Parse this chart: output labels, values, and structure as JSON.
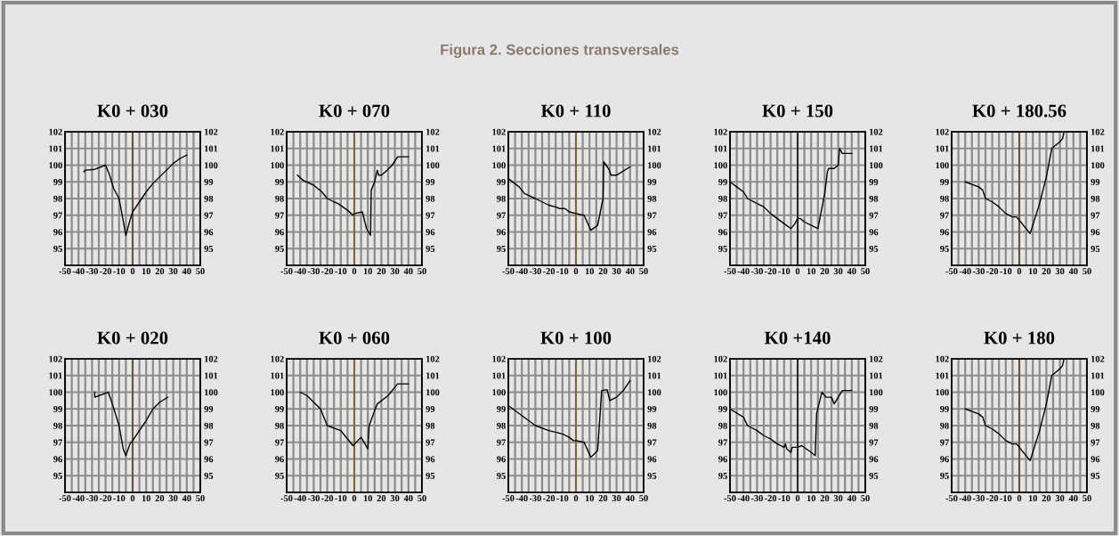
{
  "chart_data": [
    {
      "type": "line",
      "title": "K0 + 030",
      "annotations": [
        "Figura 2. Secciones transversales"
      ],
      "xlim": [
        -50,
        50
      ],
      "xticks": [
        -50,
        {
          "value": -45,
          "label": null
        },
        -40,
        {
          "value": -35,
          "label": null
        },
        -30,
        {
          "value": -25,
          "label": null
        },
        -20,
        {
          "value": -15,
          "label": null
        },
        -10,
        {
          "value": -5,
          "label": null
        },
        0,
        {
          "value": 5,
          "label": null
        },
        10,
        {
          "value": 15,
          "label": null
        },
        20,
        {
          "value": 25,
          "label": null
        },
        30,
        {
          "value": 35,
          "label": null
        },
        40,
        {
          "value": 45,
          "label": null
        },
        50
      ],
      "ylim": [
        94,
        102
      ],
      "yticks": [
        95,
        96,
        97,
        98,
        99,
        100,
        101,
        102
      ],
      "y2lim": [
        94,
        102
      ],
      "y2ticks": [
        95,
        96,
        97,
        98,
        99,
        100,
        101,
        102
      ],
      "grid": true,
      "ref_lines": [
        {
          "axis": "x",
          "value": 0,
          "color": "#5a3a10"
        }
      ],
      "series": [
        {
          "color": "#000000",
          "x": [
            -36,
            -35,
            -28,
            -20,
            -17,
            -14,
            -10,
            -5,
            -2,
            0,
            5,
            10,
            15,
            20,
            25,
            30,
            35,
            40
          ],
          "values": [
            99.6,
            99.7,
            99.75,
            100,
            99.4,
            98.6,
            98,
            95.8,
            96.7,
            97.2,
            97.8,
            98.4,
            98.9,
            99.3,
            99.7,
            100.1,
            100.4,
            100.6
          ]
        }
      ]
    },
    {
      "type": "line",
      "title": "K0 + 070",
      "xlim": [
        -50,
        50
      ],
      "xticks": [
        -50,
        {
          "value": -45,
          "label": null
        },
        -40,
        {
          "value": -35,
          "label": null
        },
        -30,
        {
          "value": -25,
          "label": null
        },
        -20,
        {
          "value": -15,
          "label": null
        },
        -10,
        {
          "value": -5,
          "label": null
        },
        0,
        {
          "value": 5,
          "label": null
        },
        10,
        {
          "value": 15,
          "label": null
        },
        20,
        {
          "value": 25,
          "label": null
        },
        30,
        {
          "value": 35,
          "label": null
        },
        40,
        {
          "value": 45,
          "label": null
        },
        50
      ],
      "ylim": [
        94,
        102
      ],
      "yticks": [
        95,
        96,
        97,
        98,
        99,
        100,
        101,
        102
      ],
      "y2lim": [
        94,
        102
      ],
      "y2ticks": [
        95,
        96,
        97,
        98,
        99,
        100,
        101,
        102
      ],
      "grid": true,
      "ref_lines": [
        {
          "axis": "x",
          "value": 0,
          "color": "#7a5a10"
        }
      ],
      "series": [
        {
          "color": "#000000",
          "x": [
            -42,
            -38,
            -30,
            -24,
            -20,
            -15,
            -12,
            -5,
            -1,
            0,
            6,
            9,
            12,
            12.5,
            15,
            17,
            18,
            20,
            23,
            28,
            32,
            40
          ],
          "values": [
            99.4,
            99.1,
            98.8,
            98.4,
            98,
            97.8,
            97.7,
            97.3,
            97,
            97.1,
            97.2,
            96.2,
            95.8,
            98.5,
            99,
            99.7,
            99.4,
            99.4,
            99.6,
            100,
            100.5,
            100.5
          ]
        }
      ]
    },
    {
      "type": "line",
      "title": "K0 + 110",
      "xlim": [
        -50,
        50
      ],
      "xticks": [
        -50,
        {
          "value": -45,
          "label": null
        },
        -40,
        {
          "value": -35,
          "label": null
        },
        -30,
        {
          "value": -25,
          "label": null
        },
        -20,
        {
          "value": -15,
          "label": null
        },
        -10,
        {
          "value": -5,
          "label": null
        },
        0,
        {
          "value": 5,
          "label": null
        },
        10,
        {
          "value": 15,
          "label": null
        },
        20,
        {
          "value": 25,
          "label": null
        },
        30,
        {
          "value": 35,
          "label": null
        },
        40,
        {
          "value": 45,
          "label": null
        },
        50
      ],
      "ylim": [
        94,
        102
      ],
      "yticks": [
        95,
        96,
        97,
        98,
        99,
        100,
        101,
        102
      ],
      "y2lim": [
        94,
        102
      ],
      "y2ticks": [
        95,
        96,
        97,
        98,
        99,
        100,
        101,
        102
      ],
      "grid": true,
      "ref_lines": [
        {
          "axis": "x",
          "value": 0,
          "color": "#7a5a10"
        }
      ],
      "series": [
        {
          "color": "#000000",
          "x": [
            -50,
            -42,
            -40,
            -38,
            -30,
            -20,
            -15,
            -12,
            -8,
            -5,
            0,
            6,
            11,
            16,
            20,
            20.5,
            24,
            26,
            30,
            32,
            40
          ],
          "values": [
            99.2,
            98.7,
            98.5,
            98.3,
            98,
            97.6,
            97.5,
            97.4,
            97.4,
            97.2,
            97.1,
            97,
            96.1,
            96.4,
            98,
            100.2,
            99.8,
            99.4,
            99.4,
            99.5,
            99.9
          ]
        }
      ]
    },
    {
      "type": "line",
      "title": "K0 + 150",
      "xlim": [
        -50,
        50
      ],
      "xticks": [
        -50,
        {
          "value": -45,
          "label": null
        },
        -40,
        {
          "value": -35,
          "label": null
        },
        -30,
        {
          "value": -25,
          "label": null
        },
        -20,
        {
          "value": -15,
          "label": null
        },
        -10,
        {
          "value": -5,
          "label": null
        },
        0,
        {
          "value": 5,
          "label": null
        },
        10,
        {
          "value": 15,
          "label": null
        },
        20,
        {
          "value": 25,
          "label": null
        },
        30,
        {
          "value": 35,
          "label": null
        },
        40,
        {
          "value": 45,
          "label": null
        },
        50
      ],
      "ylim": [
        94,
        102
      ],
      "yticks": [
        95,
        96,
        97,
        98,
        99,
        100,
        101,
        102
      ],
      "y2lim": [
        94,
        102
      ],
      "y2ticks": [
        95,
        96,
        97,
        98,
        99,
        100,
        101,
        102
      ],
      "grid": true,
      "ref_lines": [
        {
          "axis": "x",
          "value": 0,
          "color": "#000000"
        }
      ],
      "series": [
        {
          "color": "#000000",
          "x": [
            -50,
            -45,
            -40,
            -37,
            -30,
            -25,
            -20,
            -10,
            -5,
            -2,
            0,
            2,
            5,
            15,
            20,
            22,
            23,
            27,
            30,
            31,
            33,
            40
          ],
          "values": [
            99,
            98.7,
            98.4,
            98,
            97.7,
            97.5,
            97.1,
            96.5,
            96.2,
            96.5,
            96.8,
            96.8,
            96.6,
            96.2,
            98.3,
            99.6,
            99.8,
            99.8,
            100,
            101,
            100.7,
            100.7
          ]
        }
      ]
    },
    {
      "type": "line",
      "title": "K0 + 180.56",
      "xlim": [
        -50,
        50
      ],
      "xticks": [
        -50,
        {
          "value": -45,
          "label": null
        },
        -40,
        {
          "value": -35,
          "label": null
        },
        -30,
        {
          "value": -25,
          "label": null
        },
        -20,
        {
          "value": -15,
          "label": null
        },
        -10,
        {
          "value": -5,
          "label": null
        },
        0,
        {
          "value": 5,
          "label": null
        },
        10,
        {
          "value": 15,
          "label": null
        },
        20,
        {
          "value": 25,
          "label": null
        },
        30,
        {
          "value": 35,
          "label": null
        },
        40,
        {
          "value": 45,
          "label": null
        },
        50
      ],
      "ylim": [
        94,
        102
      ],
      "yticks": [
        95,
        96,
        97,
        98,
        99,
        100,
        101,
        102
      ],
      "y2lim": [
        94,
        102
      ],
      "y2ticks": [
        95,
        96,
        97,
        98,
        99,
        100,
        101,
        102
      ],
      "grid": true,
      "ref_lines": [
        {
          "axis": "x",
          "value": 0,
          "color": "#5a3a10"
        }
      ],
      "series": [
        {
          "color": "#000000",
          "x": [
            -40,
            -30,
            -27,
            -25,
            -20,
            -15,
            -10,
            -5,
            -2,
            0,
            8,
            15,
            20,
            24,
            27,
            30,
            32,
            33
          ],
          "values": [
            99,
            98.7,
            98.5,
            98,
            97.8,
            97.5,
            97.1,
            96.9,
            96.9,
            96.7,
            95.9,
            97.7,
            99.3,
            101,
            101.2,
            101.4,
            101.6,
            102
          ]
        }
      ]
    },
    {
      "type": "line",
      "title": "K0 + 020",
      "xlim": [
        -50,
        50
      ],
      "xticks": [
        -50,
        {
          "value": -45,
          "label": null
        },
        -40,
        {
          "value": -35,
          "label": null
        },
        -30,
        {
          "value": -25,
          "label": null
        },
        -20,
        {
          "value": -15,
          "label": null
        },
        -10,
        {
          "value": -5,
          "label": null
        },
        0,
        {
          "value": 5,
          "label": null
        },
        10,
        {
          "value": 15,
          "label": null
        },
        20,
        {
          "value": 25,
          "label": null
        },
        30,
        {
          "value": 35,
          "label": null
        },
        40,
        {
          "value": 45,
          "label": null
        },
        50
      ],
      "ylim": [
        94,
        102
      ],
      "yticks": [
        95,
        96,
        97,
        98,
        99,
        100,
        101,
        102
      ],
      "y2lim": [
        94,
        102
      ],
      "y2ticks": [
        95,
        96,
        97,
        98,
        99,
        100,
        101,
        102
      ],
      "grid": true,
      "ref_lines": [
        {
          "axis": "x",
          "value": 0,
          "color": "#5a3a10"
        }
      ],
      "series": [
        {
          "color": "#000000",
          "x": [
            -28,
            -28,
            -18,
            -15,
            -10,
            -7,
            -5,
            -2,
            0,
            5,
            10,
            15,
            20,
            26
          ],
          "values": [
            100,
            99.7,
            100,
            99.3,
            98,
            96.6,
            96.2,
            96.9,
            97.1,
            97.7,
            98.3,
            99,
            99.4,
            99.7
          ]
        }
      ]
    },
    {
      "type": "line",
      "title": "K0 + 060",
      "xlim": [
        -50,
        50
      ],
      "xticks": [
        -50,
        {
          "value": -45,
          "label": null
        },
        -40,
        {
          "value": -35,
          "label": null
        },
        -30,
        {
          "value": -25,
          "label": null
        },
        -20,
        {
          "value": -15,
          "label": null
        },
        -10,
        {
          "value": -5,
          "label": null
        },
        0,
        {
          "value": 5,
          "label": null
        },
        10,
        {
          "value": 15,
          "label": null
        },
        20,
        {
          "value": 25,
          "label": null
        },
        30,
        {
          "value": 35,
          "label": null
        },
        40,
        {
          "value": 45,
          "label": null
        },
        50
      ],
      "ylim": [
        94,
        102
      ],
      "yticks": [
        95,
        96,
        97,
        98,
        99,
        100,
        101,
        102
      ],
      "y2lim": [
        94,
        102
      ],
      "y2ticks": [
        95,
        96,
        97,
        98,
        99,
        100,
        101,
        102
      ],
      "grid": true,
      "ref_lines": [
        {
          "axis": "x",
          "value": 0,
          "color": "#7a5a10"
        }
      ],
      "series": [
        {
          "color": "#000000",
          "x": [
            -40,
            -35,
            -30,
            -25,
            -20,
            -10,
            -5,
            -1,
            5,
            10,
            11,
            15,
            17,
            25,
            32,
            40
          ],
          "values": [
            100,
            99.8,
            99.4,
            99,
            98,
            97.7,
            97.2,
            96.8,
            97.3,
            96.6,
            98,
            98.9,
            99.3,
            99.8,
            100.5,
            100.5
          ]
        }
      ]
    },
    {
      "type": "line",
      "title": "K0 + 100",
      "xlim": [
        -50,
        50
      ],
      "xticks": [
        -50,
        {
          "value": -45,
          "label": null
        },
        -40,
        {
          "value": -35,
          "label": null
        },
        -30,
        {
          "value": -25,
          "label": null
        },
        -20,
        {
          "value": -15,
          "label": null
        },
        -10,
        {
          "value": -5,
          "label": null
        },
        0,
        {
          "value": 5,
          "label": null
        },
        10,
        {
          "value": 15,
          "label": null
        },
        20,
        {
          "value": 25,
          "label": null
        },
        30,
        {
          "value": 35,
          "label": null
        },
        40,
        {
          "value": 45,
          "label": null
        },
        50
      ],
      "ylim": [
        94,
        102
      ],
      "yticks": [
        95,
        96,
        97,
        98,
        99,
        100,
        101,
        102
      ],
      "y2lim": [
        94,
        102
      ],
      "y2ticks": [
        95,
        96,
        97,
        98,
        99,
        100,
        101,
        102
      ],
      "grid": true,
      "ref_lines": [
        {
          "axis": "x",
          "value": 0,
          "color": "#7a5a10"
        }
      ],
      "series": [
        {
          "color": "#000000",
          "x": [
            -50,
            -40,
            -30,
            -20,
            -10,
            -5,
            -2,
            0,
            6,
            11,
            16,
            19,
            23,
            25,
            30,
            35,
            40
          ],
          "values": [
            99.2,
            98.6,
            98,
            97.7,
            97.5,
            97.3,
            97.1,
            97.1,
            97,
            96.1,
            96.5,
            100.1,
            100.15,
            99.5,
            99.7,
            100.1,
            100.7
          ]
        }
      ]
    },
    {
      "type": "line",
      "title": "K0 +140",
      "xlim": [
        -50,
        50
      ],
      "xticks": [
        -50,
        {
          "value": -45,
          "label": null
        },
        -40,
        {
          "value": -35,
          "label": null
        },
        -30,
        {
          "value": -25,
          "label": null
        },
        -20,
        {
          "value": -15,
          "label": null
        },
        -10,
        {
          "value": -5,
          "label": null
        },
        0,
        {
          "value": 5,
          "label": null
        },
        10,
        {
          "value": 15,
          "label": null
        },
        20,
        {
          "value": 25,
          "label": null
        },
        30,
        {
          "value": 35,
          "label": null
        },
        40,
        {
          "value": 45,
          "label": null
        },
        50
      ],
      "ylim": [
        94,
        102
      ],
      "yticks": [
        95,
        96,
        97,
        98,
        99,
        100,
        101,
        102
      ],
      "y2lim": [
        94,
        102
      ],
      "y2ticks": [
        95,
        96,
        97,
        98,
        99,
        100,
        101,
        102
      ],
      "grid": true,
      "ref_lines": [
        {
          "axis": "x",
          "value": 0,
          "color": "#000000"
        }
      ],
      "series": [
        {
          "color": "#000000",
          "x": [
            -50,
            -40,
            -37,
            -30,
            -25,
            -20,
            -15,
            -10,
            -9,
            -8,
            -5,
            -4,
            0,
            3,
            10,
            13,
            14,
            17,
            18,
            21,
            25,
            27,
            30,
            33,
            40
          ],
          "values": [
            99,
            98.5,
            98,
            97.7,
            97.4,
            97.2,
            96.9,
            96.7,
            96.9,
            96.6,
            96.4,
            96.7,
            96.7,
            96.8,
            96.4,
            96.2,
            98.7,
            99.7,
            100,
            99.7,
            99.7,
            99.3,
            99.7,
            100.1,
            100.1
          ]
        }
      ]
    },
    {
      "type": "line",
      "title": "K0 + 180",
      "xlim": [
        -50,
        50
      ],
      "xticks": [
        -50,
        {
          "value": -45,
          "label": null
        },
        -40,
        {
          "value": -35,
          "label": null
        },
        -30,
        {
          "value": -25,
          "label": null
        },
        -20,
        {
          "value": -15,
          "label": null
        },
        -10,
        {
          "value": -5,
          "label": null
        },
        0,
        {
          "value": 5,
          "label": null
        },
        10,
        {
          "value": 15,
          "label": null
        },
        20,
        {
          "value": 25,
          "label": null
        },
        30,
        {
          "value": 35,
          "label": null
        },
        40,
        {
          "value": 45,
          "label": null
        },
        50
      ],
      "ylim": [
        94,
        102
      ],
      "yticks": [
        95,
        96,
        97,
        98,
        99,
        100,
        101,
        102
      ],
      "y2lim": [
        94,
        102
      ],
      "y2ticks": [
        95,
        96,
        97,
        98,
        99,
        100,
        101,
        102
      ],
      "grid": true,
      "ref_lines": [
        {
          "axis": "x",
          "value": 0,
          "color": "#5a3a10"
        }
      ],
      "series": [
        {
          "color": "#000000",
          "x": [
            -40,
            -30,
            -27,
            -25,
            -20,
            -15,
            -10,
            -5,
            -2,
            0,
            8,
            15,
            20,
            24,
            27,
            30,
            32,
            33
          ],
          "values": [
            99,
            98.7,
            98.5,
            98,
            97.8,
            97.5,
            97.1,
            96.9,
            96.9,
            96.7,
            95.9,
            97.7,
            99.3,
            101,
            101.2,
            101.4,
            101.6,
            102
          ]
        }
      ]
    }
  ]
}
